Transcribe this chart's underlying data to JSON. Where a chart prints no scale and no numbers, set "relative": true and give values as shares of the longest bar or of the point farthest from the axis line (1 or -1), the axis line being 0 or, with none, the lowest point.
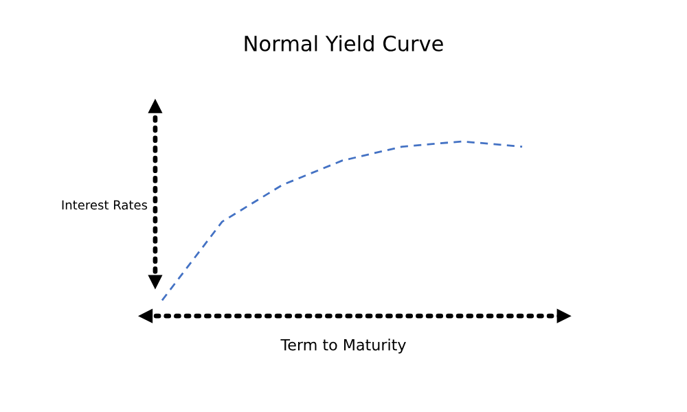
{
  "chart_data": {
    "type": "line",
    "title": "Normal Yield Curve",
    "xlabel": "Term to Maturity",
    "ylabel": "Interest Rates",
    "relative": true,
    "categories": [
      null,
      null,
      null,
      null,
      null,
      null,
      null
    ],
    "series": [
      {
        "color": "#4472c4",
        "values": [
          0.09,
          0.54,
          0.75,
          0.89,
          0.97,
          1.0,
          0.97
        ]
      }
    ],
    "line_style": "dashed",
    "marker": "none",
    "grid": false
  }
}
